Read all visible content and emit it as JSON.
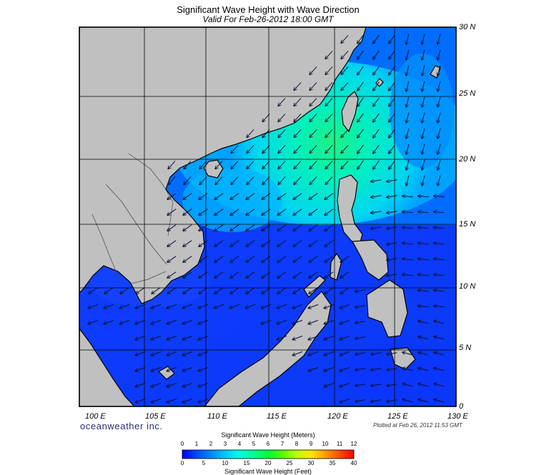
{
  "title": "Significant Wave Height with Wave Direction",
  "subtitle": "Valid For Feb-26-2012 18:00 GMT",
  "map": {
    "latitude_labels": [
      "30 N",
      "25 N",
      "20 N",
      "15 N",
      "10 N",
      "5 N",
      "0"
    ],
    "longitude_labels": [
      "100 E",
      "105 E",
      "110 E",
      "115 E",
      "120 E",
      "125 E",
      "130 E"
    ],
    "region": "South China Sea",
    "colors": {
      "land": "#c0c0c0",
      "coast": "#000000",
      "grid": "#000000",
      "frame": "#000000"
    }
  },
  "brand": "oceanweather inc.",
  "plotted": "Plotted at Feb 26, 2012 11:53 GMT",
  "legend": {
    "meters_title": "Significant Wave Height (Meters)",
    "feet_title": "Significant Wave Height (Feet)",
    "meters_ticks": [
      "0",
      "1",
      "2",
      "3",
      "4",
      "5",
      "6",
      "7",
      "8",
      "9",
      "10",
      "11",
      "12"
    ],
    "feet_ticks": [
      "0",
      "5",
      "10",
      "15",
      "20",
      "25",
      "30",
      "35",
      "40"
    ],
    "colors": [
      "#0000ff",
      "#0046ff",
      "#0082ff",
      "#00c8ff",
      "#00ffe0",
      "#00ff96",
      "#00ff3c",
      "#50ff00",
      "#b4ff00",
      "#ffe600",
      "#ffa000",
      "#ff5000",
      "#ff0000"
    ]
  }
}
